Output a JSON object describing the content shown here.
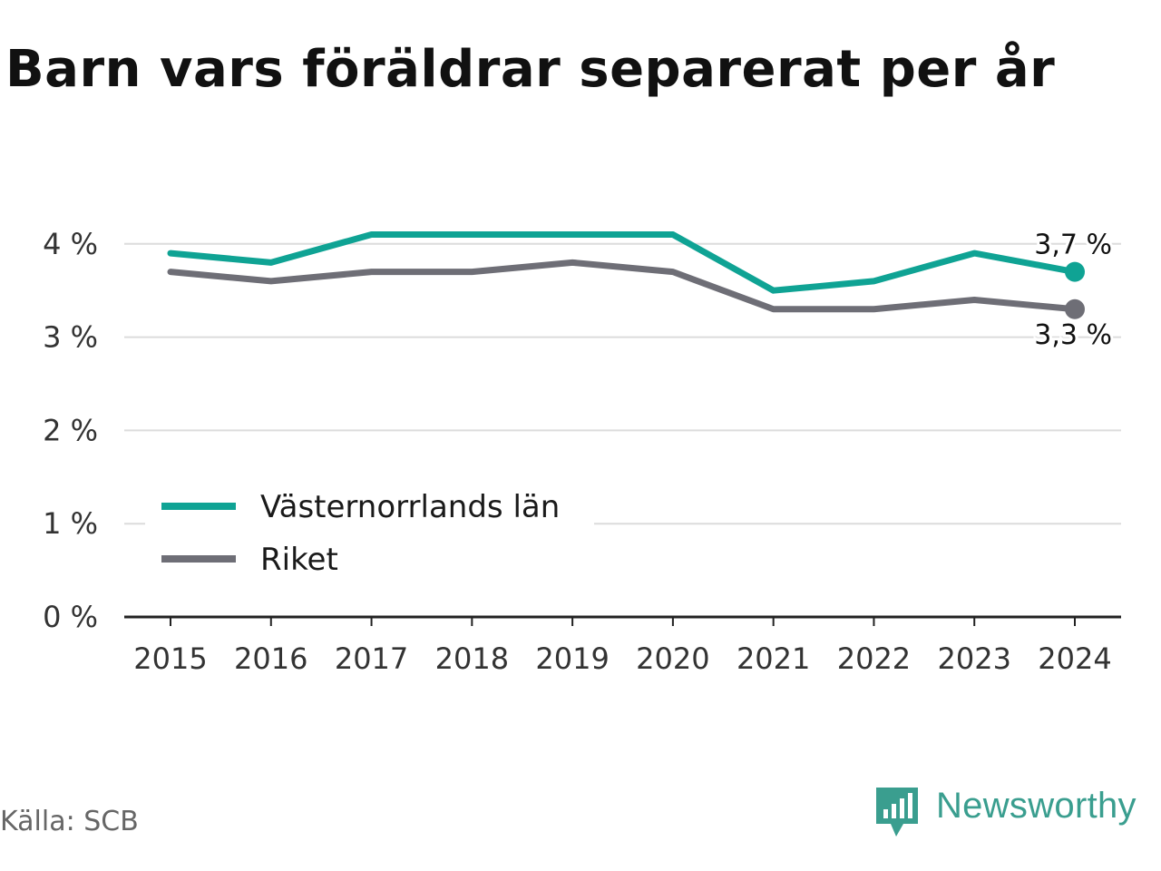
{
  "title": "Barn vars föräldrar separerat per år",
  "source": "Källa: SCB",
  "brand": {
    "name": "Newsworthy",
    "icon": "newsworthy-logo-icon",
    "color": "#3a9e8f"
  },
  "chart_data": {
    "type": "line",
    "title": "Barn vars föräldrar separerat per år",
    "x": [
      "2015",
      "2016",
      "2017",
      "2018",
      "2019",
      "2020",
      "2021",
      "2022",
      "2023",
      "2024"
    ],
    "ylim": [
      0,
      4.4
    ],
    "yticks": [
      0,
      1,
      2,
      3,
      4
    ],
    "ytick_labels": [
      "0 %",
      "1 %",
      "2 %",
      "3 %",
      "4 %"
    ],
    "grid": true,
    "legend_position": "bottom-left",
    "series": [
      {
        "name": "Västernorrlands län",
        "color": "#0fa394",
        "values": [
          3.9,
          3.8,
          4.1,
          4.1,
          4.1,
          4.1,
          3.5,
          3.6,
          3.9,
          3.7
        ],
        "end_label": "3,7 %"
      },
      {
        "name": "Riket",
        "color": "#6e6e76",
        "values": [
          3.7,
          3.6,
          3.7,
          3.7,
          3.8,
          3.7,
          3.3,
          3.3,
          3.4,
          3.3
        ],
        "end_label": "3,3 %"
      }
    ]
  }
}
